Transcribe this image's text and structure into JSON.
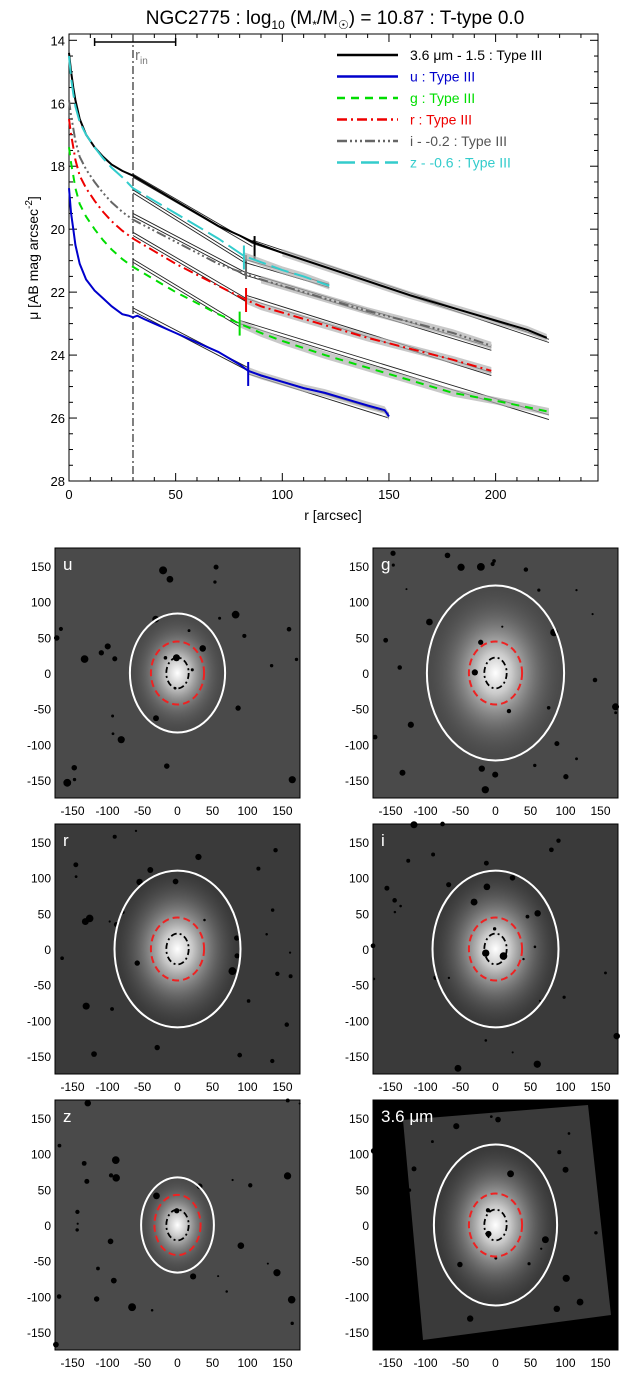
{
  "chart_data": [
    {
      "type": "line",
      "title": "NGC2775 : log",
      "title_sub": "10",
      "title_mid": " (M",
      "title_star": "*",
      "title_mid2": "/M",
      "title_sun": "☉",
      "title_end": ") = 10.87 : T-type 0.0",
      "xlabel": "r [arcsec]",
      "ylabel": "μ [AB mag arcsec",
      "ylabel_sup": "-2",
      "ylabel_end": "]",
      "xlim": [
        0,
        248
      ],
      "ylim": [
        28,
        13.8
      ],
      "y_inverted": true,
      "x_ticks": [
        0,
        50,
        100,
        150,
        200
      ],
      "y_ticks": [
        14,
        16,
        18,
        20,
        22,
        24,
        26,
        28
      ],
      "r_in_label": "r",
      "r_in_sub": "in",
      "r_in_value": 30,
      "r_in_errbar": [
        12,
        50
      ],
      "series": [
        {
          "name": "3.6 μm - 1.5 : Type III",
          "color": "#000000",
          "dash": "none",
          "x": [
            0,
            1,
            2,
            3,
            5,
            8,
            12,
            16,
            20,
            25,
            30,
            40,
            50,
            60,
            70,
            80,
            86,
            100,
            120,
            140,
            160,
            180,
            200,
            215,
            224
          ],
          "y": [
            14.4,
            15.0,
            15.5,
            15.9,
            16.5,
            17.0,
            17.4,
            17.7,
            17.95,
            18.15,
            18.3,
            18.7,
            19.1,
            19.5,
            19.9,
            20.2,
            20.4,
            20.75,
            21.2,
            21.65,
            22.1,
            22.5,
            22.9,
            23.2,
            23.45
          ],
          "fits": [
            {
              "x": [
                30,
                86
              ],
              "y": [
                18.25,
                20.45
              ]
            },
            {
              "x": [
                86,
                225
              ],
              "y": [
                20.35,
                23.5
              ]
            },
            {
              "x": [
                30,
                86
              ],
              "y": [
                18.35,
                20.55
              ]
            },
            {
              "x": [
                86,
                225
              ],
              "y": [
                20.45,
                23.6
              ]
            }
          ],
          "break_r": 87,
          "break_mu": 20.6
        },
        {
          "name": "u : Type III",
          "color": "#0000cc",
          "dash": "none",
          "x": [
            0,
            1,
            2,
            3,
            5,
            8,
            12,
            16,
            20,
            25,
            28,
            30,
            32,
            35,
            40,
            50,
            60,
            70,
            80,
            84,
            90,
            100,
            110,
            120,
            130,
            140,
            148,
            150
          ],
          "y": [
            18.7,
            19.5,
            20.0,
            20.5,
            21.1,
            21.6,
            21.95,
            22.2,
            22.45,
            22.7,
            22.75,
            22.8,
            22.75,
            22.85,
            23.0,
            23.3,
            23.6,
            23.9,
            24.3,
            24.5,
            24.65,
            24.85,
            25.05,
            25.2,
            25.4,
            25.6,
            25.75,
            25.95
          ],
          "fits": [
            {
              "x": [
                30,
                84
              ],
              "y": [
                22.5,
                24.4
              ]
            },
            {
              "x": [
                84,
                150
              ],
              "y": [
                24.5,
                25.85
              ]
            },
            {
              "x": [
                30,
                84
              ],
              "y": [
                22.6,
                24.5
              ]
            },
            {
              "x": [
                84,
                150
              ],
              "y": [
                24.6,
                26.0
              ]
            }
          ],
          "break_r": 84,
          "break_mu": 24.6
        },
        {
          "name": "g : Type III",
          "color": "#00dd00",
          "dash": "8,6",
          "x": [
            0,
            1,
            2,
            3,
            5,
            8,
            12,
            16,
            20,
            25,
            30,
            40,
            50,
            60,
            70,
            80,
            90,
            100,
            120,
            140,
            160,
            180,
            200,
            225
          ],
          "y": [
            17.4,
            17.9,
            18.3,
            18.7,
            19.2,
            19.6,
            20.0,
            20.35,
            20.65,
            20.95,
            21.2,
            21.6,
            22.0,
            22.35,
            22.7,
            23.0,
            23.3,
            23.55,
            24.0,
            24.4,
            24.8,
            25.2,
            25.45,
            25.8
          ],
          "fits": [
            {
              "x": [
                30,
                80
              ],
              "y": [
                20.95,
                23.0
              ]
            },
            {
              "x": [
                80,
                225
              ],
              "y": [
                22.9,
                25.9
              ]
            },
            {
              "x": [
                30,
                80
              ],
              "y": [
                21.05,
                23.1
              ]
            },
            {
              "x": [
                80,
                225
              ],
              "y": [
                23.0,
                26.05
              ]
            }
          ],
          "break_r": 80,
          "break_mu": 23.0
        },
        {
          "name": "r : Type III",
          "color": "#ee0000",
          "dash": "10,4,2,4",
          "x": [
            0,
            1,
            2,
            3,
            5,
            8,
            12,
            16,
            20,
            25,
            30,
            40,
            50,
            60,
            70,
            83,
            90,
            100,
            120,
            140,
            160,
            180,
            198
          ],
          "y": [
            16.5,
            17.0,
            17.4,
            17.8,
            18.3,
            18.7,
            19.1,
            19.45,
            19.75,
            20.05,
            20.3,
            20.7,
            21.1,
            21.45,
            21.8,
            22.25,
            22.45,
            22.65,
            23.05,
            23.45,
            23.8,
            24.15,
            24.5
          ],
          "fits": [
            {
              "x": [
                30,
                83
              ],
              "y": [
                20.1,
                22.2
              ]
            },
            {
              "x": [
                83,
                198
              ],
              "y": [
                22.1,
                24.55
              ]
            },
            {
              "x": [
                30,
                83
              ],
              "y": [
                20.2,
                22.3
              ]
            },
            {
              "x": [
                83,
                198
              ],
              "y": [
                22.2,
                24.65
              ]
            }
          ],
          "break_r": 83,
          "break_mu": 22.25
        },
        {
          "name": "i - -0.2 : Type III",
          "color": "#666666",
          "dash": "10,3,2,3,2,3,2,3",
          "x": [
            0,
            1,
            2,
            3,
            5,
            8,
            12,
            16,
            20,
            25,
            30,
            40,
            50,
            60,
            70,
            82,
            90,
            100,
            120,
            140,
            160,
            180,
            198
          ],
          "y": [
            15.9,
            16.4,
            16.8,
            17.2,
            17.7,
            18.1,
            18.5,
            18.85,
            19.15,
            19.45,
            19.7,
            20.05,
            20.4,
            20.75,
            21.1,
            21.4,
            21.6,
            21.8,
            22.2,
            22.6,
            22.95,
            23.3,
            23.7
          ],
          "fits": [
            {
              "x": [
                30,
                82
              ],
              "y": [
                19.5,
                21.35
              ]
            },
            {
              "x": [
                82,
                198
              ],
              "y": [
                21.35,
                23.75
              ]
            },
            {
              "x": [
                30,
                82
              ],
              "y": [
                19.6,
                21.45
              ]
            },
            {
              "x": [
                82,
                198
              ],
              "y": [
                21.45,
                23.85
              ]
            }
          ],
          "break_r": 83,
          "break_mu": 21.2
        },
        {
          "name": "z - -0.6 : Type III",
          "color": "#33cccc",
          "dash": "18,6",
          "x": [
            0,
            1,
            2,
            3,
            5,
            8,
            12,
            16,
            20,
            25,
            30,
            40,
            50,
            60,
            70,
            82,
            90,
            100,
            110,
            122
          ],
          "y": [
            14.5,
            15.2,
            15.7,
            16.1,
            16.6,
            17.0,
            17.4,
            17.75,
            18.05,
            18.35,
            18.7,
            19.1,
            19.5,
            19.9,
            20.3,
            20.85,
            21.05,
            21.3,
            21.5,
            21.8
          ],
          "fits": [
            {
              "x": [
                30,
                82
              ],
              "y": [
                18.75,
                20.95
              ]
            },
            {
              "x": [
                82,
                122
              ],
              "y": [
                20.95,
                21.75
              ]
            },
            {
              "x": [
                30,
                82
              ],
              "y": [
                18.85,
                21.05
              ]
            },
            {
              "x": [
                82,
                122
              ],
              "y": [
                21.05,
                21.85
              ]
            }
          ],
          "break_r": 82,
          "break_mu": 20.9
        }
      ]
    },
    {
      "type": "heatmap",
      "panels": [
        {
          "label": "u",
          "outer_ellipse": [
            68,
            85
          ],
          "inner_ellipse": [
            38,
            45
          ],
          "core_ellipse": [
            16,
            22
          ],
          "background": "#4a4a4a"
        },
        {
          "label": "g",
          "outer_ellipse": [
            98,
            125
          ],
          "inner_ellipse": [
            38,
            45
          ],
          "core_ellipse": [
            16,
            22
          ],
          "background": "#4a4a4a"
        },
        {
          "label": "r",
          "outer_ellipse": [
            90,
            112
          ],
          "inner_ellipse": [
            38,
            45
          ],
          "core_ellipse": [
            16,
            22
          ],
          "background": "#3a3a3a"
        },
        {
          "label": "i",
          "outer_ellipse": [
            90,
            112
          ],
          "inner_ellipse": [
            38,
            45
          ],
          "core_ellipse": [
            16,
            22
          ],
          "background": "#3a3a3a"
        },
        {
          "label": "z",
          "outer_ellipse": [
            52,
            68
          ],
          "inner_ellipse": [
            33,
            43
          ],
          "core_ellipse": [
            16,
            22
          ],
          "background": "#4a4a4a"
        },
        {
          "label": "3.6 μm",
          "outer_ellipse": [
            88,
            115
          ],
          "inner_ellipse": [
            38,
            45
          ],
          "core_ellipse": [
            16,
            22
          ],
          "background": "#000000"
        }
      ],
      "x_ticks": [
        -150,
        -100,
        -50,
        0,
        50,
        100,
        150
      ],
      "y_ticks": [
        150,
        100,
        50,
        0,
        -50,
        -100,
        -150
      ],
      "extent": [
        -175,
        175
      ]
    }
  ]
}
